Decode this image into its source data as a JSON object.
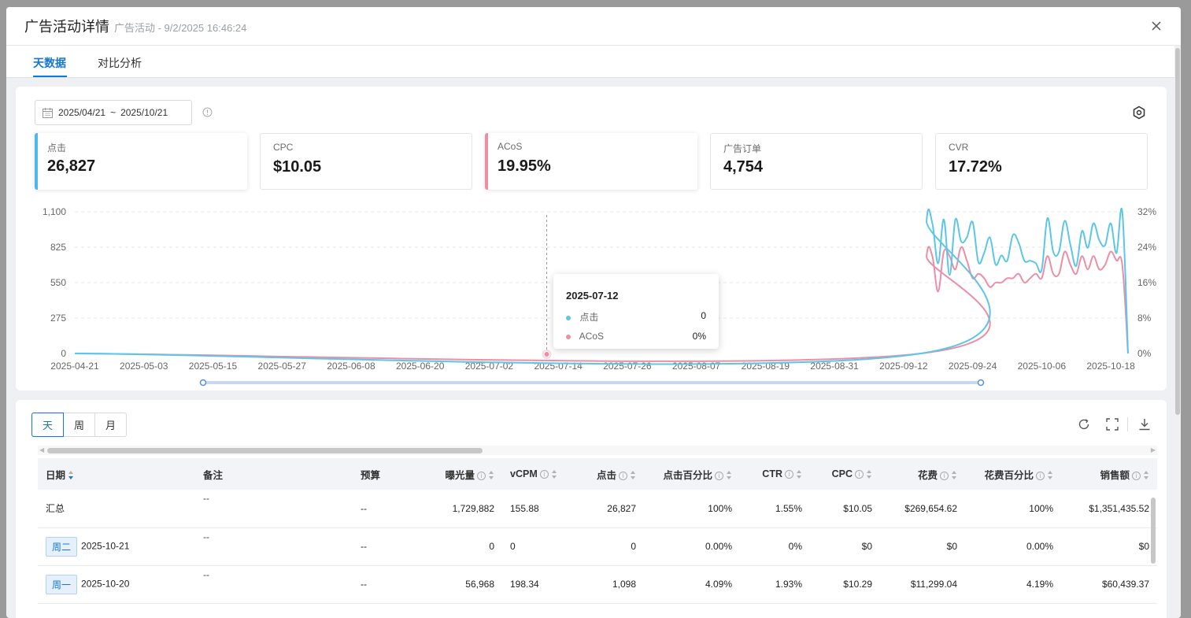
{
  "modal": {
    "title": "广告活动详情",
    "subtitle": "广告活动 - 9/2/2025 16:46:24"
  },
  "tabs": [
    {
      "label": "天数据",
      "active": true
    },
    {
      "label": "对比分析",
      "active": false
    }
  ],
  "date_range": {
    "start": "2025/04/21",
    "separator": "~",
    "end": "2025/10/21"
  },
  "metrics": [
    {
      "label": "点击",
      "value": "26,827",
      "selected": true,
      "color": "#4fb8e8"
    },
    {
      "label": "CPC",
      "value": "$10.05",
      "selected": false,
      "color": ""
    },
    {
      "label": "ACoS",
      "value": "19.95%",
      "selected": true,
      "color": "#ec8ea6"
    },
    {
      "label": "广告订单",
      "value": "4,754",
      "selected": false,
      "color": ""
    },
    {
      "label": "CVR",
      "value": "17.72%",
      "selected": false,
      "color": ""
    }
  ],
  "chart_data": {
    "type": "line",
    "x_tick_labels": [
      "2025-04-21",
      "2025-05-03",
      "2025-05-15",
      "2025-05-27",
      "2025-06-08",
      "2025-06-20",
      "2025-07-02",
      "2025-07-14",
      "2025-07-26",
      "2025-08-07",
      "2025-08-19",
      "2025-08-31",
      "2025-09-12",
      "2025-09-24",
      "2025-10-06",
      "2025-10-18"
    ],
    "y_left": {
      "ticks": [
        "0",
        "275",
        "550",
        "825",
        "1,100"
      ],
      "range": [
        0,
        1100
      ]
    },
    "y_right": {
      "ticks": [
        "0%",
        "8%",
        "16%",
        "24%",
        "32%"
      ],
      "range": [
        0,
        32
      ]
    },
    "series": [
      {
        "name": "点击",
        "axis": "left",
        "color": "#5cc6e8",
        "zero_until": "2025-09-15",
        "x": [
          "2025-09-16",
          "2025-09-17",
          "2025-09-18",
          "2025-09-19",
          "2025-09-20",
          "2025-09-21",
          "2025-09-22",
          "2025-09-23",
          "2025-09-24",
          "2025-09-25",
          "2025-09-26",
          "2025-09-27",
          "2025-09-28",
          "2025-09-29",
          "2025-09-30",
          "2025-10-01",
          "2025-10-02",
          "2025-10-03",
          "2025-10-04",
          "2025-10-05",
          "2025-10-06",
          "2025-10-07",
          "2025-10-08",
          "2025-10-09",
          "2025-10-10",
          "2025-10-11",
          "2025-10-12",
          "2025-10-13",
          "2025-10-14",
          "2025-10-15",
          "2025-10-16",
          "2025-10-17",
          "2025-10-18",
          "2025-10-19",
          "2025-10-20",
          "2025-10-21"
        ],
        "values": [
          1030,
          1010,
          700,
          1040,
          610,
          1040,
          870,
          900,
          1020,
          710,
          780,
          900,
          690,
          760,
          720,
          920,
          860,
          720,
          720,
          700,
          650,
          1050,
          790,
          790,
          1030,
          840,
          680,
          950,
          820,
          1010,
          880,
          840,
          1010,
          780,
          1098,
          0
        ]
      },
      {
        "name": "ACoS",
        "axis": "right",
        "color": "#ec8ea6",
        "zero_until": "2025-09-15",
        "x": [
          "2025-09-16",
          "2025-09-17",
          "2025-09-18",
          "2025-09-19",
          "2025-09-20",
          "2025-09-21",
          "2025-09-22",
          "2025-09-23",
          "2025-09-24",
          "2025-09-25",
          "2025-09-26",
          "2025-09-27",
          "2025-09-28",
          "2025-09-29",
          "2025-09-30",
          "2025-10-01",
          "2025-10-02",
          "2025-10-03",
          "2025-10-04",
          "2025-10-05",
          "2025-10-06",
          "2025-10-07",
          "2025-10-08",
          "2025-10-09",
          "2025-10-10",
          "2025-10-11",
          "2025-10-12",
          "2025-10-13",
          "2025-10-14",
          "2025-10-15",
          "2025-10-16",
          "2025-10-17",
          "2025-10-18",
          "2025-10-19",
          "2025-10-20",
          "2025-10-21"
        ],
        "values": [
          22,
          22,
          14,
          23,
          22,
          19,
          24,
          21,
          17,
          18,
          17,
          15,
          16,
          16,
          17,
          17,
          18,
          16,
          17,
          18,
          17,
          22,
          18,
          18,
          23,
          20,
          18,
          22,
          19,
          22,
          19,
          20,
          23,
          21,
          20,
          0
        ]
      }
    ],
    "hover": {
      "date": "2025-07-12"
    },
    "range_slider": {
      "start": "2025-04-21",
      "end": "2025-10-21"
    }
  },
  "tooltip": {
    "date": "2025-07-12",
    "rows": [
      {
        "label": "点击",
        "value": "0",
        "color": "#5cc6e8"
      },
      {
        "label": "ACoS",
        "value": "0%",
        "color": "#ec8ea6"
      }
    ]
  },
  "granularity": [
    {
      "label": "天",
      "active": true
    },
    {
      "label": "周",
      "active": false
    },
    {
      "label": "月",
      "active": false
    }
  ],
  "table": {
    "columns": [
      {
        "label": "日期",
        "info": false,
        "sort": "desc",
        "align": "l"
      },
      {
        "label": "备注",
        "info": false,
        "sort": "",
        "align": "l"
      },
      {
        "label": "预算",
        "info": false,
        "sort": "",
        "align": "l"
      },
      {
        "label": "曝光量",
        "info": true,
        "sort": "both",
        "align": "r"
      },
      {
        "label": "vCPM",
        "info": true,
        "sort": "both",
        "align": "l"
      },
      {
        "label": "点击",
        "info": true,
        "sort": "both",
        "align": "r"
      },
      {
        "label": "点击百分比",
        "info": true,
        "sort": "both",
        "align": "r"
      },
      {
        "label": "CTR",
        "info": true,
        "sort": "both",
        "align": "r"
      },
      {
        "label": "CPC",
        "info": true,
        "sort": "both",
        "align": "r"
      },
      {
        "label": "花费",
        "info": true,
        "sort": "both",
        "align": "r"
      },
      {
        "label": "花费百分比",
        "info": true,
        "sort": "both",
        "align": "r"
      },
      {
        "label": "销售额",
        "info": true,
        "sort": "both",
        "align": "r"
      }
    ],
    "rows": [
      {
        "weekday": "",
        "date": "汇总",
        "note": "--",
        "budget": "--",
        "impressions": "1,729,882",
        "vcpm": "155.88",
        "clicks": "26,827",
        "click_pct": "100%",
        "ctr": "1.55%",
        "cpc": "$10.05",
        "spend": "$269,654.62",
        "spend_pct": "100%",
        "sales": "$1,351,435.52"
      },
      {
        "weekday": "周二",
        "date": "2025-10-21",
        "note": "--",
        "budget": "--",
        "impressions": "0",
        "vcpm": "0",
        "clicks": "0",
        "click_pct": "0.00%",
        "ctr": "0%",
        "cpc": "$0",
        "spend": "$0",
        "spend_pct": "0.00%",
        "sales": "$0"
      },
      {
        "weekday": "周一",
        "date": "2025-10-20",
        "note": "--",
        "budget": "--",
        "impressions": "56,968",
        "vcpm": "198.34",
        "clicks": "1,098",
        "click_pct": "4.09%",
        "ctr": "1.93%",
        "cpc": "$10.29",
        "spend": "$11,299.04",
        "spend_pct": "4.19%",
        "sales": "$60,439.37"
      }
    ]
  },
  "icons": {
    "close": "close-icon",
    "calendar": "calendar-icon",
    "info": "info-icon",
    "settings": "settings-icon",
    "refresh": "refresh-icon",
    "fullscreen": "fullscreen-icon",
    "download": "download-icon"
  }
}
